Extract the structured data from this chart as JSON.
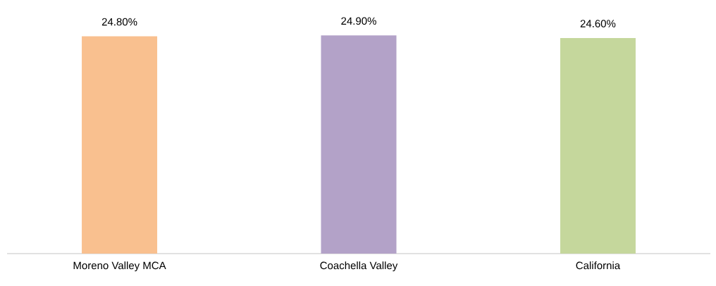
{
  "chart_data": {
    "type": "bar",
    "categories": [
      "Moreno Valley MCA",
      "Coachella Valley",
      "California"
    ],
    "values": [
      24.8,
      24.9,
      24.6
    ],
    "colors": [
      "#f9c08f",
      "#b3a2c8",
      "#c5d79c"
    ],
    "value_labels": [
      "24.80%",
      "24.90%",
      "24.60%"
    ]
  }
}
